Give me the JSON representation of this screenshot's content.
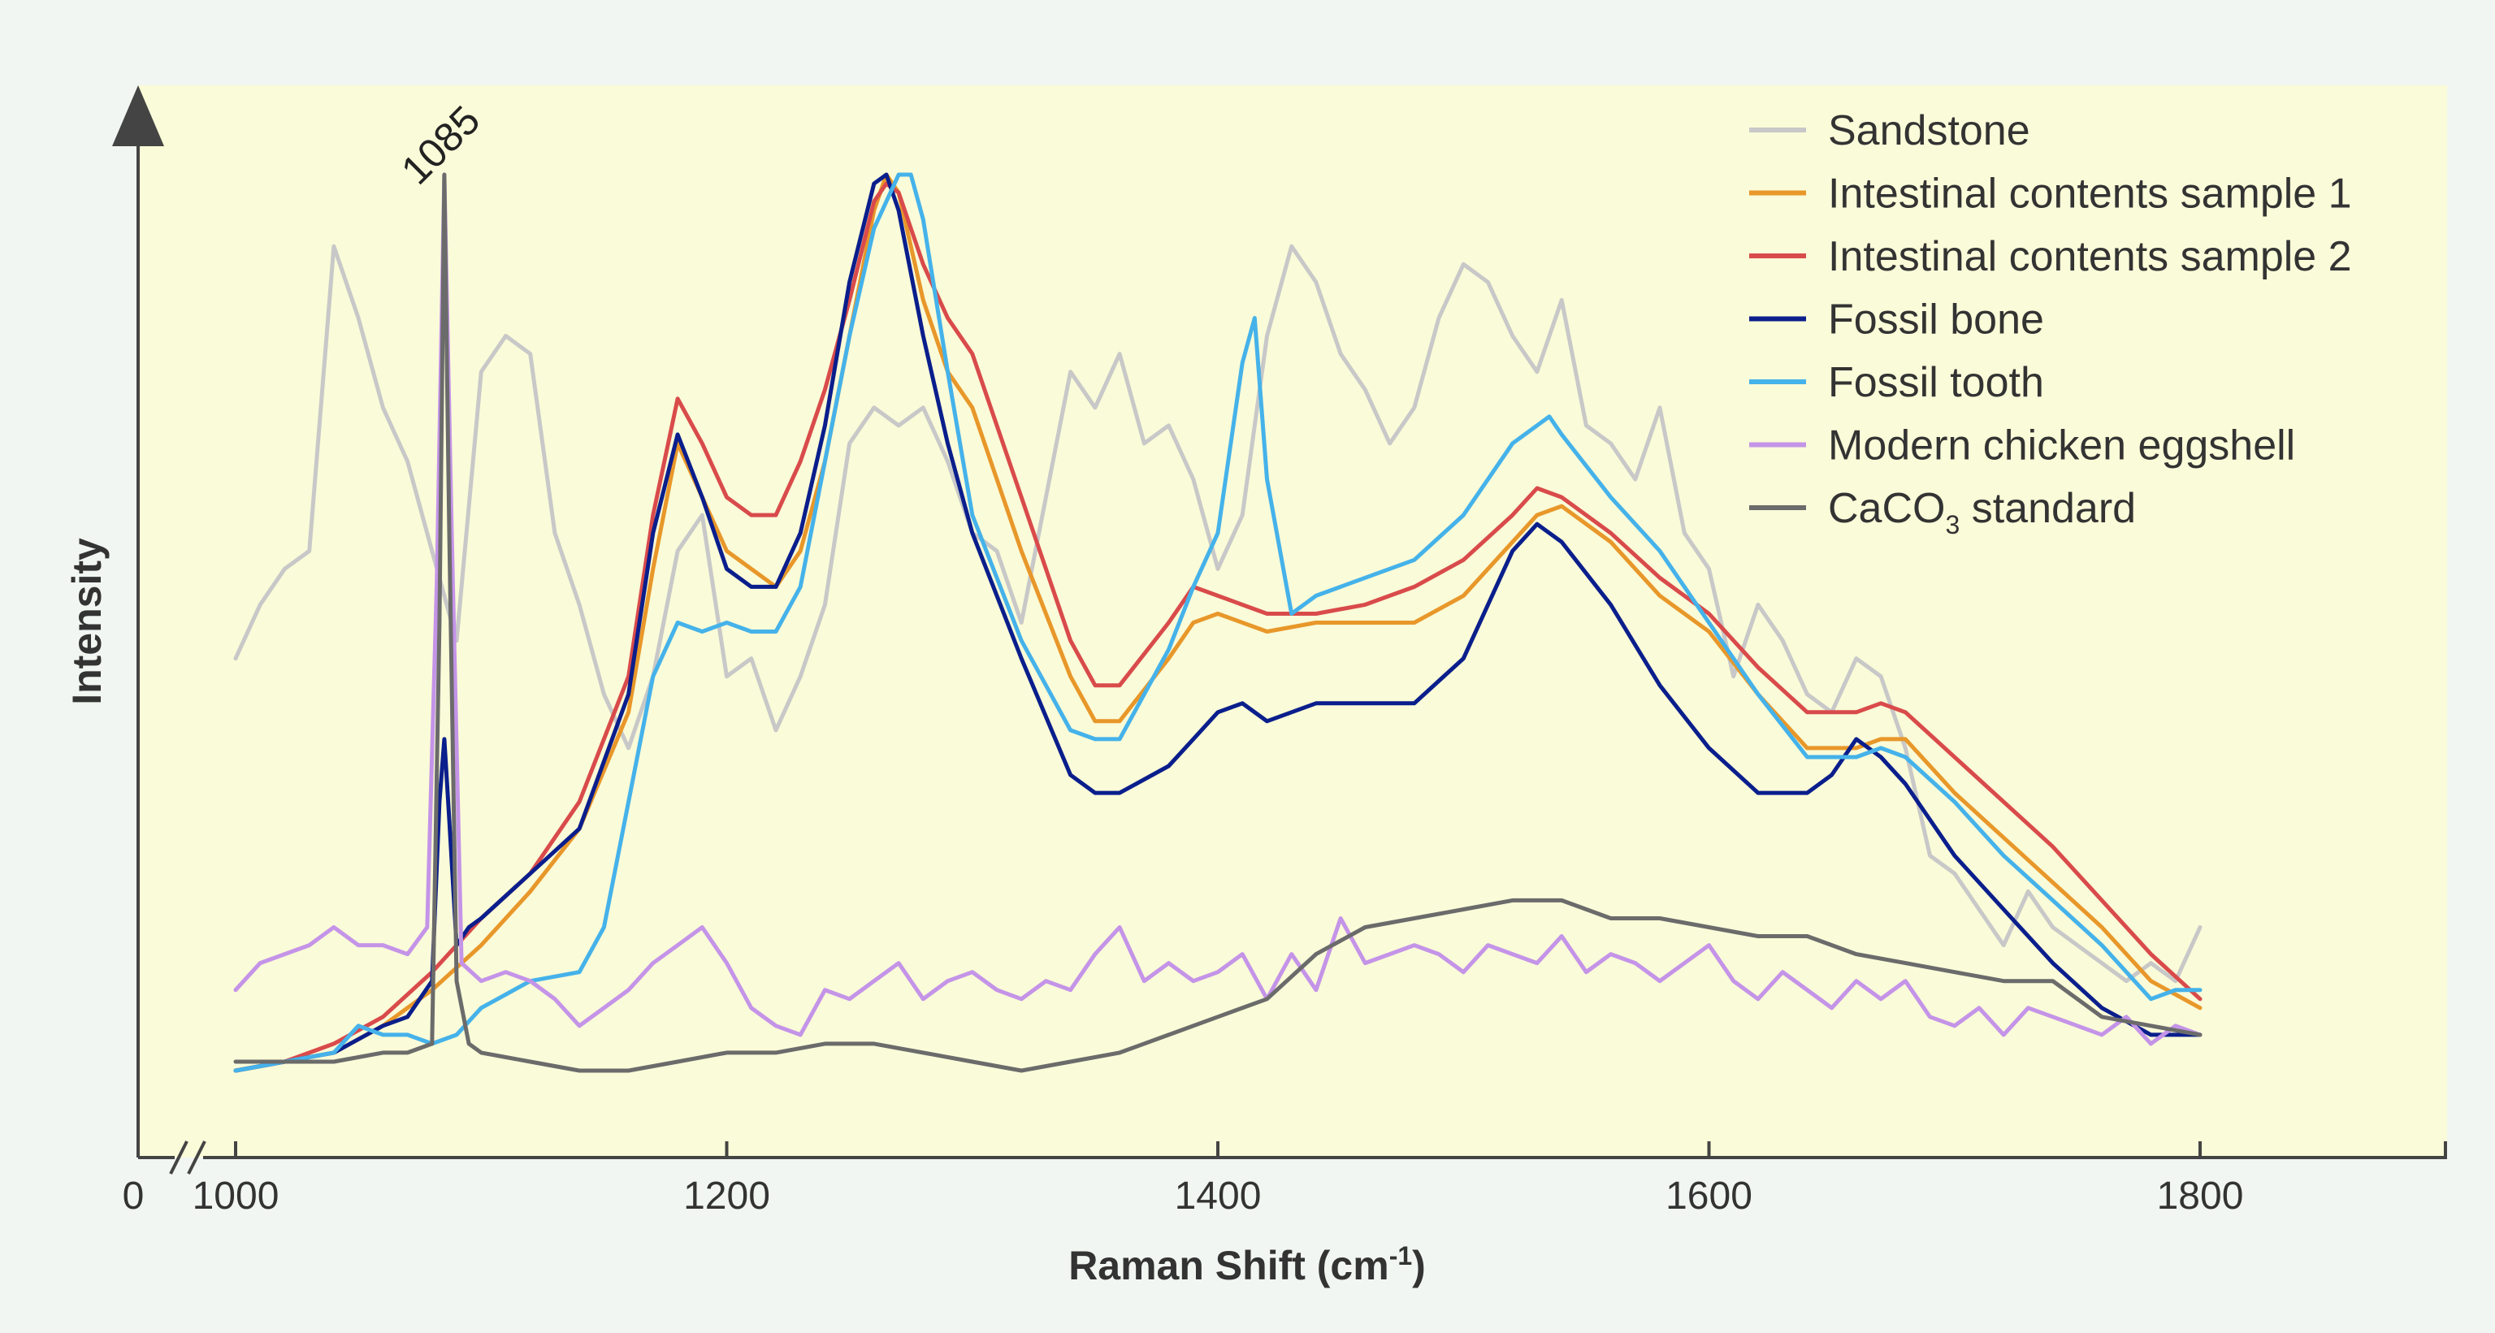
{
  "chart_data": {
    "type": "line",
    "xlabel": "Raman Shift (cm",
    "xlabel_sup": "-1",
    "xlabel_close": ")",
    "ylabel": "Intensity",
    "xlim": [
      1000,
      1800
    ],
    "x_zero_label": "0",
    "xticks": [
      1000,
      1200,
      1400,
      1600,
      1800
    ],
    "xtick_labels": [
      "1000",
      "1200",
      "1400",
      "1600",
      "1800"
    ],
    "yticks": [],
    "ylim": [
      0,
      100
    ],
    "grid": false,
    "axis_break": true,
    "legend_position": "top-right",
    "background": "#fafbd8",
    "annotation": {
      "text": "1085",
      "x": 1085
    },
    "series": [
      {
        "name": "Sandstone",
        "color": "#c8c8c8",
        "x": [
          1000,
          1010,
          1020,
          1030,
          1040,
          1050,
          1060,
          1070,
          1080,
          1090,
          1100,
          1110,
          1120,
          1130,
          1140,
          1150,
          1160,
          1170,
          1180,
          1190,
          1200,
          1210,
          1220,
          1230,
          1240,
          1250,
          1260,
          1270,
          1280,
          1290,
          1300,
          1310,
          1320,
          1330,
          1340,
          1350,
          1360,
          1370,
          1380,
          1390,
          1400,
          1410,
          1420,
          1430,
          1440,
          1450,
          1460,
          1470,
          1480,
          1490,
          1500,
          1510,
          1520,
          1530,
          1540,
          1550,
          1560,
          1570,
          1580,
          1590,
          1600,
          1610,
          1620,
          1630,
          1640,
          1650,
          1660,
          1670,
          1680,
          1690,
          1700,
          1710,
          1720,
          1730,
          1740,
          1750,
          1760,
          1770,
          1780,
          1790,
          1800
        ],
        "y": [
          46,
          52,
          56,
          58,
          92,
          84,
          74,
          68,
          58,
          48,
          78,
          82,
          80,
          60,
          52,
          42,
          36,
          44,
          58,
          62,
          44,
          46,
          38,
          44,
          52,
          70,
          74,
          72,
          74,
          68,
          60,
          58,
          50,
          64,
          78,
          74,
          80,
          70,
          72,
          66,
          56,
          62,
          82,
          92,
          88,
          80,
          76,
          70,
          74,
          84,
          90,
          88,
          82,
          78,
          86,
          72,
          70,
          66,
          74,
          60,
          56,
          44,
          52,
          48,
          42,
          40,
          46,
          44,
          36,
          24,
          22,
          18,
          14,
          20,
          16,
          14,
          12,
          10,
          12,
          10,
          16
        ]
      },
      {
        "name": "Intestinal contents sample 1",
        "color": "#e8972a",
        "x": [
          1000,
          1020,
          1040,
          1060,
          1080,
          1100,
          1120,
          1140,
          1160,
          1170,
          1180,
          1190,
          1200,
          1210,
          1220,
          1230,
          1240,
          1250,
          1260,
          1265,
          1270,
          1280,
          1290,
          1300,
          1320,
          1340,
          1350,
          1360,
          1380,
          1390,
          1400,
          1420,
          1440,
          1460,
          1480,
          1500,
          1520,
          1530,
          1540,
          1560,
          1580,
          1600,
          1620,
          1640,
          1660,
          1670,
          1680,
          1700,
          1720,
          1740,
          1760,
          1780,
          1800
        ],
        "y": [
          0,
          1,
          2,
          5,
          9,
          14,
          20,
          27,
          40,
          56,
          70,
          64,
          58,
          56,
          54,
          58,
          68,
          82,
          96,
          100,
          98,
          86,
          78,
          74,
          58,
          44,
          39,
          39,
          46,
          50,
          51,
          49,
          50,
          50,
          50,
          53,
          59,
          62,
          63,
          59,
          53,
          49,
          42,
          36,
          36,
          37,
          37,
          31,
          26,
          21,
          16,
          10,
          7
        ]
      },
      {
        "name": "Intestinal contents sample 2",
        "color": "#d94b4b",
        "x": [
          1000,
          1020,
          1040,
          1060,
          1080,
          1100,
          1120,
          1140,
          1160,
          1170,
          1180,
          1190,
          1200,
          1210,
          1220,
          1230,
          1240,
          1250,
          1260,
          1265,
          1270,
          1280,
          1290,
          1300,
          1320,
          1340,
          1350,
          1360,
          1380,
          1390,
          1400,
          1420,
          1440,
          1460,
          1480,
          1500,
          1520,
          1530,
          1540,
          1560,
          1580,
          1600,
          1620,
          1640,
          1660,
          1670,
          1680,
          1700,
          1720,
          1740,
          1760,
          1780,
          1800
        ],
        "y": [
          0,
          1,
          3,
          6,
          11,
          17,
          22,
          30,
          44,
          62,
          75,
          70,
          64,
          62,
          62,
          68,
          76,
          86,
          97,
          99,
          98,
          90,
          84,
          80,
          64,
          48,
          43,
          43,
          50,
          54,
          53,
          51,
          51,
          52,
          54,
          57,
          62,
          65,
          64,
          60,
          55,
          51,
          45,
          40,
          40,
          41,
          40,
          35,
          30,
          25,
          19,
          13,
          8
        ]
      },
      {
        "name": "Fossil bone",
        "color": "#0a1e8c",
        "x": [
          1000,
          1020,
          1040,
          1060,
          1070,
          1080,
          1083,
          1085,
          1087,
          1090,
          1095,
          1100,
          1120,
          1140,
          1160,
          1170,
          1180,
          1190,
          1200,
          1210,
          1220,
          1230,
          1240,
          1250,
          1260,
          1265,
          1270,
          1280,
          1290,
          1300,
          1320,
          1340,
          1350,
          1360,
          1380,
          1390,
          1400,
          1410,
          1420,
          1440,
          1460,
          1480,
          1500,
          1520,
          1530,
          1540,
          1560,
          1580,
          1600,
          1620,
          1640,
          1650,
          1660,
          1670,
          1680,
          1700,
          1720,
          1740,
          1760,
          1780,
          1800
        ],
        "y": [
          0,
          1,
          2,
          5,
          6,
          10,
          30,
          37,
          28,
          14,
          16,
          17,
          22,
          27,
          42,
          60,
          71,
          64,
          56,
          54,
          54,
          60,
          72,
          88,
          99,
          100,
          96,
          82,
          70,
          60,
          46,
          33,
          31,
          31,
          34,
          37,
          40,
          41,
          39,
          41,
          41,
          41,
          46,
          58,
          61,
          59,
          52,
          43,
          36,
          31,
          31,
          33,
          37,
          35,
          32,
          24,
          18,
          12,
          7,
          4,
          4
        ]
      },
      {
        "name": "Fossil tooth",
        "color": "#45b2ea",
        "x": [
          1000,
          1020,
          1040,
          1050,
          1060,
          1070,
          1080,
          1090,
          1100,
          1120,
          1140,
          1150,
          1160,
          1170,
          1180,
          1190,
          1200,
          1210,
          1220,
          1230,
          1240,
          1250,
          1260,
          1270,
          1275,
          1280,
          1290,
          1300,
          1320,
          1340,
          1350,
          1360,
          1380,
          1390,
          1400,
          1410,
          1415,
          1420,
          1430,
          1440,
          1460,
          1480,
          1500,
          1520,
          1535,
          1540,
          1560,
          1580,
          1600,
          1620,
          1640,
          1660,
          1670,
          1680,
          1700,
          1720,
          1740,
          1760,
          1780,
          1790,
          1800
        ],
        "y": [
          0,
          1,
          2,
          5,
          4,
          4,
          3,
          4,
          7,
          10,
          11,
          16,
          30,
          44,
          50,
          49,
          50,
          49,
          49,
          54,
          68,
          82,
          94,
          100,
          100,
          95,
          78,
          62,
          48,
          38,
          37,
          37,
          47,
          54,
          60,
          79,
          84,
          66,
          51,
          53,
          55,
          57,
          62,
          70,
          73,
          71,
          64,
          58,
          50,
          42,
          35,
          35,
          36,
          35,
          30,
          24,
          19,
          14,
          8,
          9,
          9
        ]
      },
      {
        "name": "Modern chicken eggshell",
        "color": "#c494e8",
        "x": [
          1000,
          1010,
          1020,
          1030,
          1040,
          1050,
          1060,
          1070,
          1078,
          1082,
          1085,
          1088,
          1092,
          1100,
          1110,
          1120,
          1130,
          1140,
          1150,
          1160,
          1170,
          1180,
          1190,
          1200,
          1210,
          1220,
          1230,
          1240,
          1250,
          1260,
          1270,
          1280,
          1290,
          1300,
          1310,
          1320,
          1330,
          1340,
          1350,
          1360,
          1370,
          1380,
          1390,
          1400,
          1410,
          1420,
          1430,
          1440,
          1450,
          1460,
          1470,
          1480,
          1490,
          1500,
          1510,
          1520,
          1530,
          1540,
          1550,
          1560,
          1570,
          1580,
          1590,
          1600,
          1610,
          1620,
          1630,
          1640,
          1650,
          1660,
          1670,
          1680,
          1690,
          1700,
          1710,
          1720,
          1730,
          1740,
          1750,
          1760,
          1770,
          1780,
          1790,
          1800
        ],
        "y": [
          9,
          12,
          13,
          14,
          16,
          14,
          14,
          13,
          16,
          55,
          100,
          60,
          12,
          10,
          11,
          10,
          8,
          5,
          7,
          9,
          12,
          14,
          16,
          12,
          7,
          5,
          4,
          9,
          8,
          10,
          12,
          8,
          10,
          11,
          9,
          8,
          10,
          9,
          13,
          16,
          10,
          12,
          10,
          11,
          13,
          8,
          13,
          9,
          17,
          12,
          13,
          14,
          13,
          11,
          14,
          13,
          12,
          15,
          11,
          13,
          12,
          10,
          12,
          14,
          10,
          8,
          11,
          9,
          7,
          10,
          8,
          10,
          6,
          5,
          7,
          4,
          7,
          6,
          5,
          4,
          6,
          3,
          5,
          4
        ]
      },
      {
        "name": "CaCO3 standard",
        "color": "#6b6b6b",
        "x": [
          1000,
          1020,
          1040,
          1060,
          1070,
          1080,
          1083,
          1085,
          1087,
          1090,
          1095,
          1100,
          1120,
          1140,
          1160,
          1180,
          1200,
          1220,
          1240,
          1260,
          1280,
          1300,
          1320,
          1340,
          1360,
          1380,
          1400,
          1420,
          1440,
          1460,
          1480,
          1500,
          1520,
          1540,
          1560,
          1580,
          1600,
          1620,
          1640,
          1660,
          1680,
          1700,
          1720,
          1740,
          1760,
          1780,
          1800
        ],
        "y": [
          1,
          1,
          1,
          2,
          2,
          3,
          50,
          100,
          60,
          10,
          3,
          2,
          1,
          0,
          0,
          1,
          2,
          2,
          3,
          3,
          2,
          1,
          0,
          1,
          2,
          4,
          6,
          8,
          13,
          16,
          17,
          18,
          19,
          19,
          17,
          17,
          16,
          15,
          15,
          13,
          12,
          11,
          10,
          10,
          6,
          5,
          4
        ]
      }
    ],
    "legend": [
      {
        "label": "Sandstone",
        "color": "#c8c8c8"
      },
      {
        "label": "Intestinal contents sample 1",
        "color": "#e8972a"
      },
      {
        "label": "Intestinal contents sample 2",
        "color": "#d94b4b"
      },
      {
        "label": "Fossil bone",
        "color": "#0a1e8c"
      },
      {
        "label": "Fossil tooth",
        "color": "#45b2ea"
      },
      {
        "label": "Modern chicken eggshell",
        "color": "#c494e8"
      },
      {
        "label": "CaCO",
        "sub": "3",
        "tail": " standard",
        "color": "#6b6b6b"
      }
    ]
  }
}
